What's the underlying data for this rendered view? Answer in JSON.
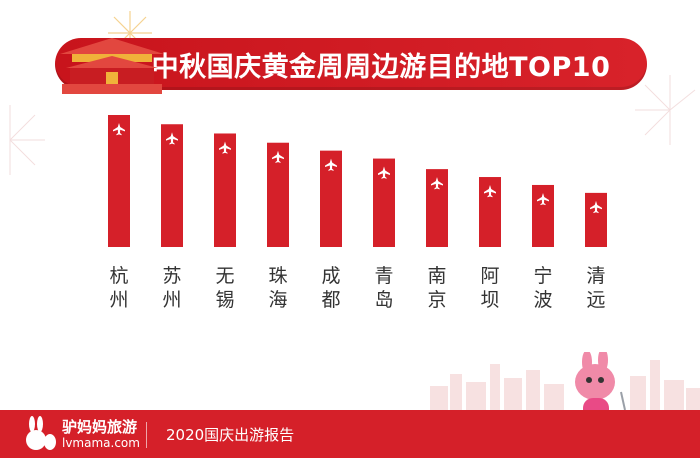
{
  "chart_data": {
    "type": "bar",
    "title": "中秋国庆黄金周周边游目的地TOP10",
    "categories": [
      "杭州",
      "苏州",
      "无锡",
      "珠海",
      "成都",
      "青岛",
      "南京",
      "阿坝",
      "宁波",
      "清远"
    ],
    "values": [
      10,
      9.3,
      8.6,
      7.9,
      7.3,
      6.7,
      5.9,
      5.3,
      4.7,
      4.1
    ],
    "ylim": [
      0,
      10
    ],
    "grid": false,
    "bar_color": "#d52029"
  },
  "footer": {
    "brand_name": "驴妈妈旅游",
    "brand_url": "lvmama.com",
    "report_title": "2020国庆出游报告"
  },
  "colors": {
    "accent": "#d52029",
    "banner": "#c8141c"
  }
}
